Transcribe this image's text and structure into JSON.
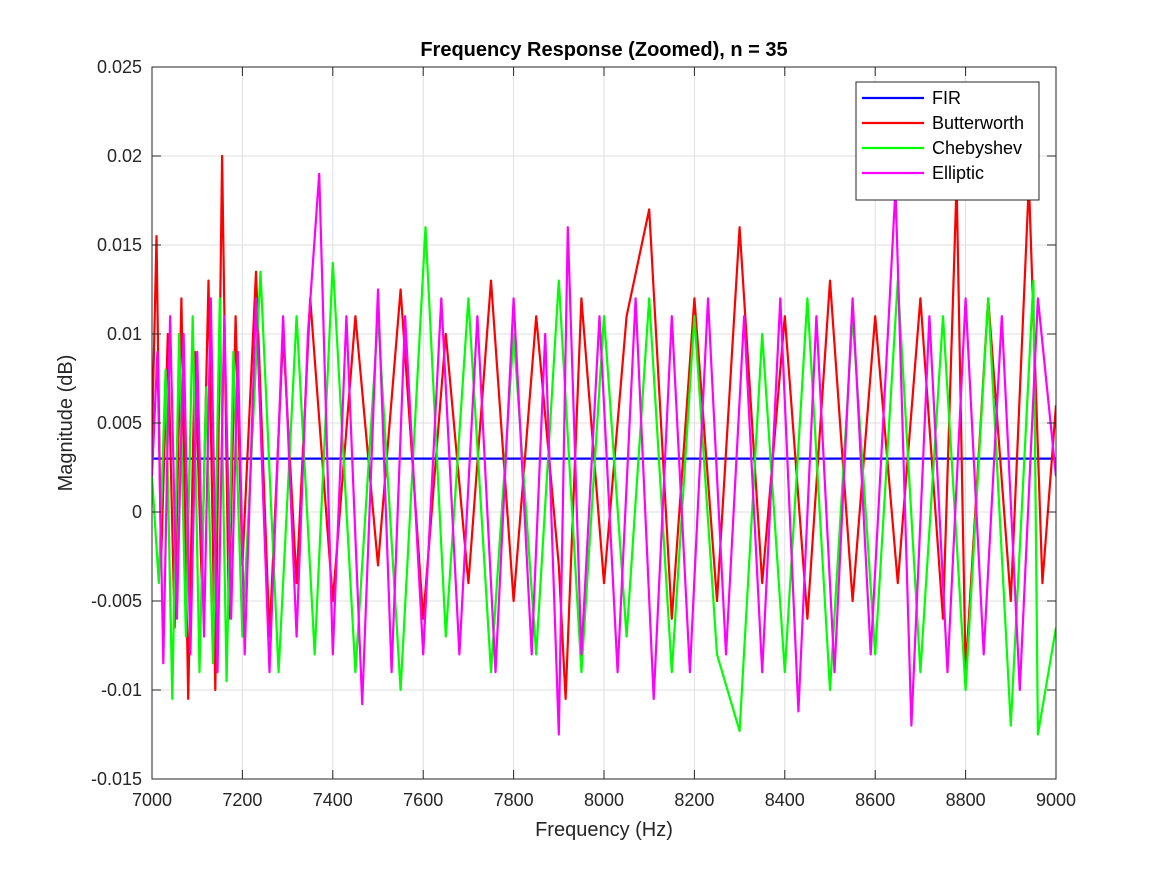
{
  "chart_data": {
    "type": "line",
    "title": "Frequency Response (Zoomed), n = 35",
    "xlabel": "Frequency (Hz)",
    "ylabel": "Magnitude (dB)",
    "xlim": [
      7000,
      9000
    ],
    "ylim": [
      -0.015,
      0.025
    ],
    "xticks": [
      7000,
      7200,
      7400,
      7600,
      7800,
      8000,
      8200,
      8400,
      8600,
      8800,
      9000
    ],
    "xtick_labels": [
      "7000",
      "7200",
      "7400",
      "7600",
      "7800",
      "8000",
      "8200",
      "8400",
      "8600",
      "8800",
      "9000"
    ],
    "yticks": [
      -0.015,
      -0.01,
      -0.005,
      0,
      0.005,
      0.01,
      0.015,
      0.02,
      0.025
    ],
    "ytick_labels": [
      "-0.015",
      "-0.01",
      "-0.005",
      "0",
      "0.005",
      "0.01",
      "0.015",
      "0.02",
      "0.025"
    ],
    "grid": true,
    "legend_position": "top-right",
    "series": [
      {
        "name": "FIR",
        "color": "#0000ff",
        "x": [
          7000,
          9000
        ],
        "y": [
          0.003,
          0.003
        ]
      },
      {
        "name": "Butterworth",
        "color": "#ff0000",
        "x": [
          7000,
          7010,
          7020,
          7035,
          7050,
          7065,
          7080,
          7095,
          7110,
          7125,
          7140,
          7155,
          7170,
          7185,
          7200,
          7230,
          7260,
          7290,
          7320,
          7350,
          7400,
          7450,
          7500,
          7550,
          7600,
          7650,
          7700,
          7750,
          7800,
          7850,
          7900,
          7915,
          7950,
          8000,
          8050,
          8100,
          8150,
          8200,
          8250,
          8300,
          8350,
          8400,
          8450,
          8500,
          8550,
          8600,
          8650,
          8700,
          8750,
          8780,
          8800,
          8850,
          8900,
          8940,
          8970,
          9000
        ],
        "y": [
          0.004,
          0.0155,
          -0.003,
          0.01,
          -0.0065,
          0.012,
          -0.0105,
          0.009,
          -0.004,
          0.013,
          -0.01,
          0.02,
          -0.006,
          0.011,
          -0.003,
          0.0135,
          -0.007,
          0.01,
          -0.004,
          0.012,
          -0.005,
          0.011,
          -0.003,
          0.0125,
          -0.006,
          0.01,
          -0.004,
          0.013,
          -0.005,
          0.011,
          -0.003,
          -0.0105,
          0.012,
          -0.004,
          0.011,
          0.017,
          -0.006,
          0.012,
          -0.005,
          0.016,
          -0.004,
          0.011,
          -0.006,
          0.013,
          -0.005,
          0.011,
          -0.004,
          0.012,
          -0.006,
          0.0185,
          -0.009,
          0.012,
          -0.005,
          0.0185,
          -0.004,
          0.006
        ]
      },
      {
        "name": "Chebyshev",
        "color": "#00ff00",
        "x": [
          7000,
          7015,
          7030,
          7045,
          7060,
          7075,
          7090,
          7105,
          7120,
          7135,
          7150,
          7165,
          7180,
          7200,
          7240,
          7280,
          7320,
          7360,
          7400,
          7450,
          7500,
          7550,
          7605,
          7650,
          7700,
          7750,
          7800,
          7850,
          7900,
          7950,
          8000,
          8050,
          8100,
          8150,
          8200,
          8250,
          8300,
          8350,
          8400,
          8450,
          8500,
          8550,
          8600,
          8650,
          8700,
          8750,
          8800,
          8850,
          8900,
          8950,
          8960,
          9000
        ],
        "y": [
          0.002,
          -0.004,
          0.008,
          -0.0105,
          0.01,
          -0.007,
          0.011,
          -0.009,
          0.007,
          -0.0085,
          0.012,
          -0.0095,
          0.009,
          -0.007,
          0.0135,
          -0.009,
          0.011,
          -0.008,
          0.014,
          -0.009,
          0.011,
          -0.01,
          0.016,
          -0.007,
          0.012,
          -0.009,
          0.01,
          -0.008,
          0.013,
          -0.009,
          0.011,
          -0.007,
          0.012,
          -0.009,
          0.011,
          -0.008,
          -0.0123,
          0.01,
          -0.009,
          0.012,
          -0.01,
          0.011,
          -0.008,
          0.013,
          -0.009,
          0.011,
          -0.01,
          0.012,
          -0.012,
          0.013,
          -0.0125,
          -0.0065
        ]
      },
      {
        "name": "Elliptic",
        "color": "#ff00ff",
        "x": [
          7000,
          7012,
          7025,
          7040,
          7055,
          7070,
          7085,
          7100,
          7115,
          7130,
          7145,
          7160,
          7175,
          7190,
          7205,
          7230,
          7260,
          7290,
          7320,
          7345,
          7370,
          7400,
          7430,
          7465,
          7500,
          7530,
          7560,
          7600,
          7640,
          7680,
          7720,
          7760,
          7800,
          7840,
          7870,
          7900,
          7920,
          7950,
          7990,
          8030,
          8070,
          8110,
          8150,
          8190,
          8230,
          8270,
          8310,
          8350,
          8390,
          8430,
          8470,
          8510,
          8550,
          8590,
          8630,
          8645,
          8680,
          8720,
          8760,
          8800,
          8840,
          8880,
          8920,
          8960,
          9000
        ],
        "y": [
          0.002,
          0.009,
          -0.0085,
          0.011,
          -0.006,
          0.01,
          -0.008,
          0.009,
          -0.007,
          0.012,
          -0.009,
          0.011,
          -0.006,
          0.009,
          -0.008,
          0.012,
          -0.009,
          0.011,
          -0.007,
          0.01,
          0.019,
          -0.008,
          0.011,
          -0.0108,
          0.0125,
          -0.009,
          0.011,
          -0.008,
          0.012,
          -0.008,
          0.011,
          -0.009,
          0.012,
          -0.008,
          0.01,
          -0.0125,
          0.016,
          -0.008,
          0.011,
          -0.009,
          0.012,
          -0.0105,
          0.011,
          -0.009,
          0.012,
          -0.008,
          0.011,
          -0.009,
          0.012,
          -0.0112,
          0.011,
          -0.009,
          0.012,
          -0.008,
          0.011,
          0.0182,
          -0.012,
          0.011,
          -0.009,
          0.012,
          -0.008,
          0.011,
          -0.01,
          0.012,
          0.002
        ]
      }
    ]
  }
}
